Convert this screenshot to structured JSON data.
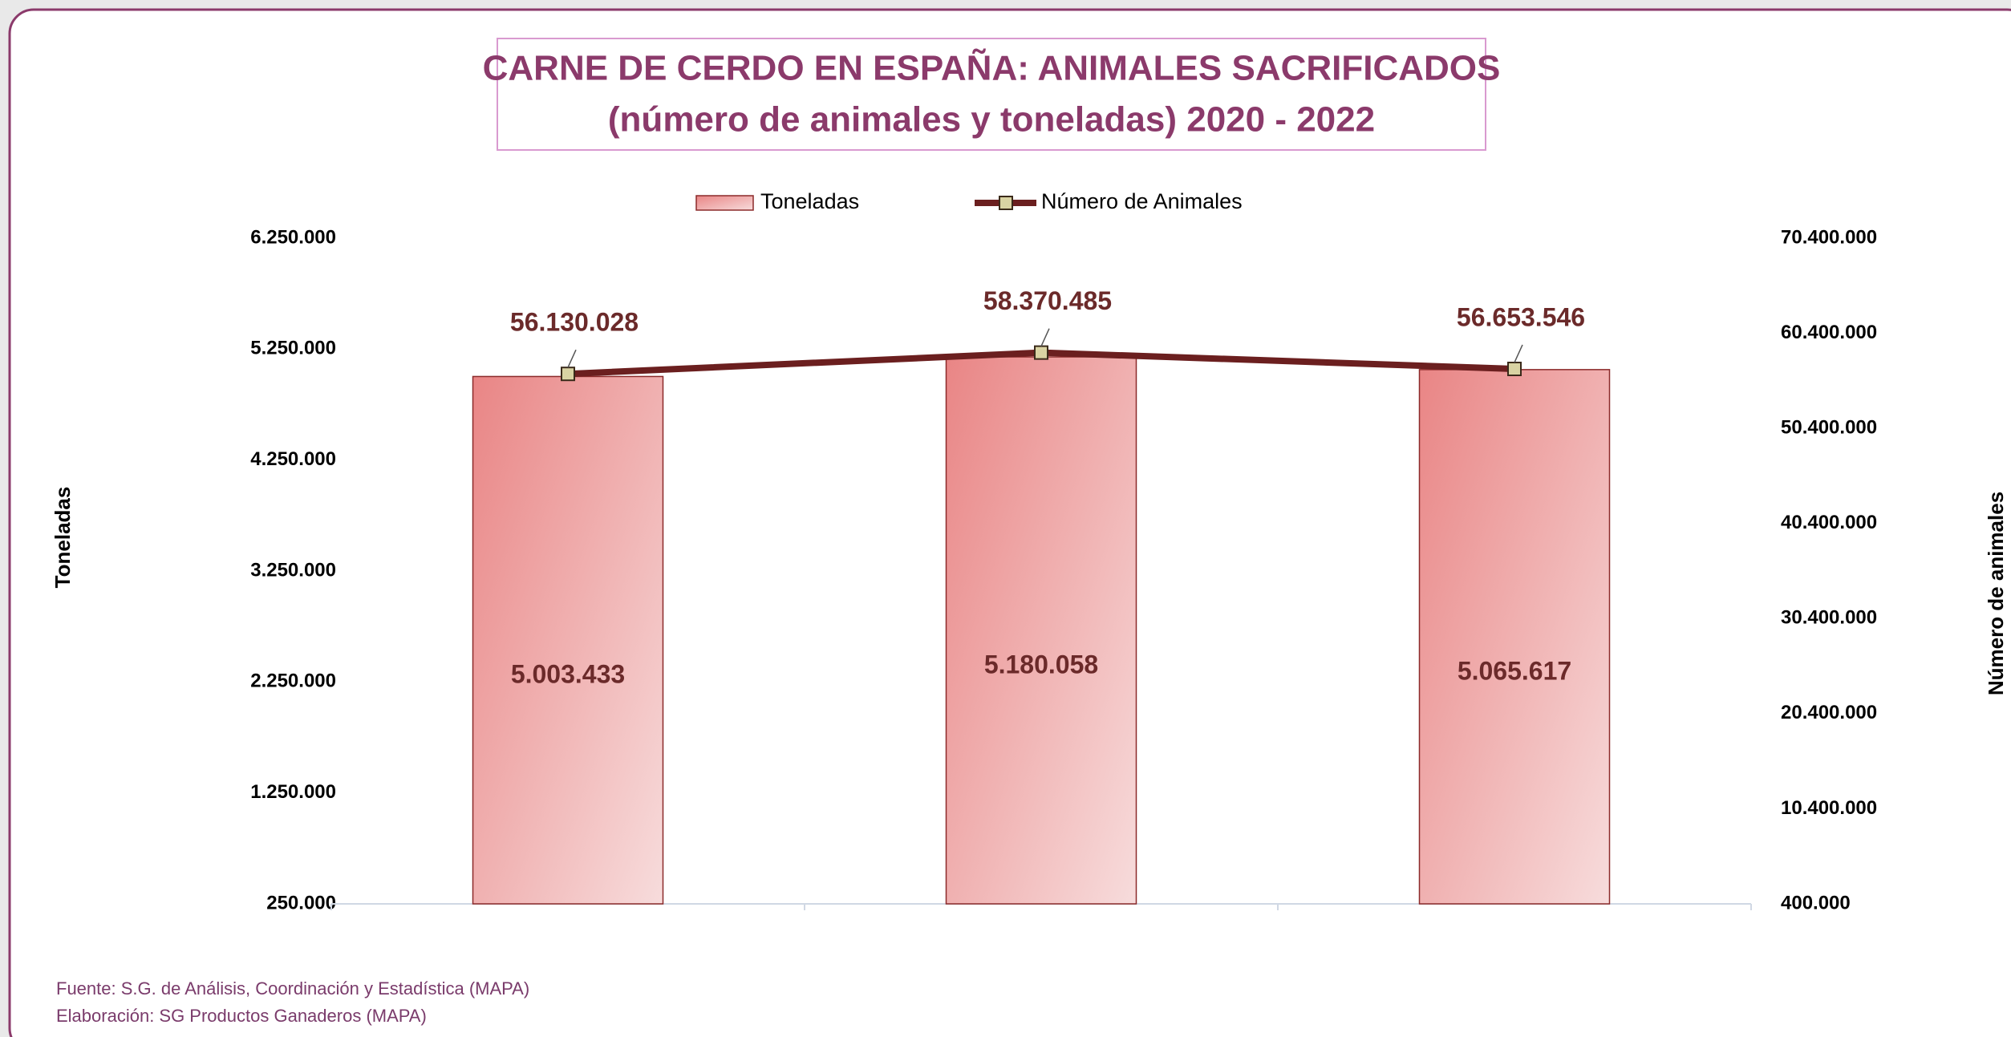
{
  "chart_data": {
    "type": "bar",
    "title": "CARNE DE CERDO EN ESPAÑA: ANIMALES SACRIFICADOS",
    "subtitle": "(número de animales y toneladas)  2020 - 2022",
    "ylabel": "Toneladas",
    "y2label": "Número de animales",
    "categories": [
      null,
      null,
      null
    ],
    "series": [
      {
        "name": "Toneladas",
        "type": "bar",
        "color": "#e98b8b",
        "values": [
          5003433,
          5180058,
          5065617
        ],
        "value_labels": [
          "5.003.433",
          "5.180.058",
          "5.065.617"
        ]
      },
      {
        "name": "Número de Animales",
        "type": "line",
        "axis": "y2",
        "color": "#6b1f1f",
        "values": [
          56130028,
          58370485,
          56653546
        ],
        "value_labels": [
          "56.130.028",
          "58.370.485",
          "56.653.546"
        ]
      }
    ],
    "ylim": [
      250000,
      6250000
    ],
    "yticks": [
      {
        "value": 250000,
        "label": "250.000"
      },
      {
        "value": 1250000,
        "label": "1.250.000"
      },
      {
        "value": 2250000,
        "label": "2.250.000"
      },
      {
        "value": 3250000,
        "label": "3.250.000"
      },
      {
        "value": 4250000,
        "label": "4.250.000"
      },
      {
        "value": 5250000,
        "label": "5.250.000"
      },
      {
        "value": 6250000,
        "label": "6.250.000"
      }
    ],
    "y2lim": [
      400000,
      70400000
    ],
    "y2ticks": [
      {
        "value": 400000,
        "label": "400.000"
      },
      {
        "value": 10400000,
        "label": "10.400.000"
      },
      {
        "value": 20400000,
        "label": "20.400.000"
      },
      {
        "value": 30400000,
        "label": "30.400.000"
      },
      {
        "value": 40400000,
        "label": "40.400.000"
      },
      {
        "value": 50400000,
        "label": "50.400.000"
      },
      {
        "value": 60400000,
        "label": "60.400.000"
      },
      {
        "value": 70400000,
        "label": "70.400.000"
      }
    ],
    "grid": false,
    "legend": "top",
    "annotations": [
      "Fuente:  S.G.  de Análisis, Coordinación y Estadística (MAPA)",
      "Elaboración: SG Productos Ganaderos (MAPA)"
    ]
  }
}
